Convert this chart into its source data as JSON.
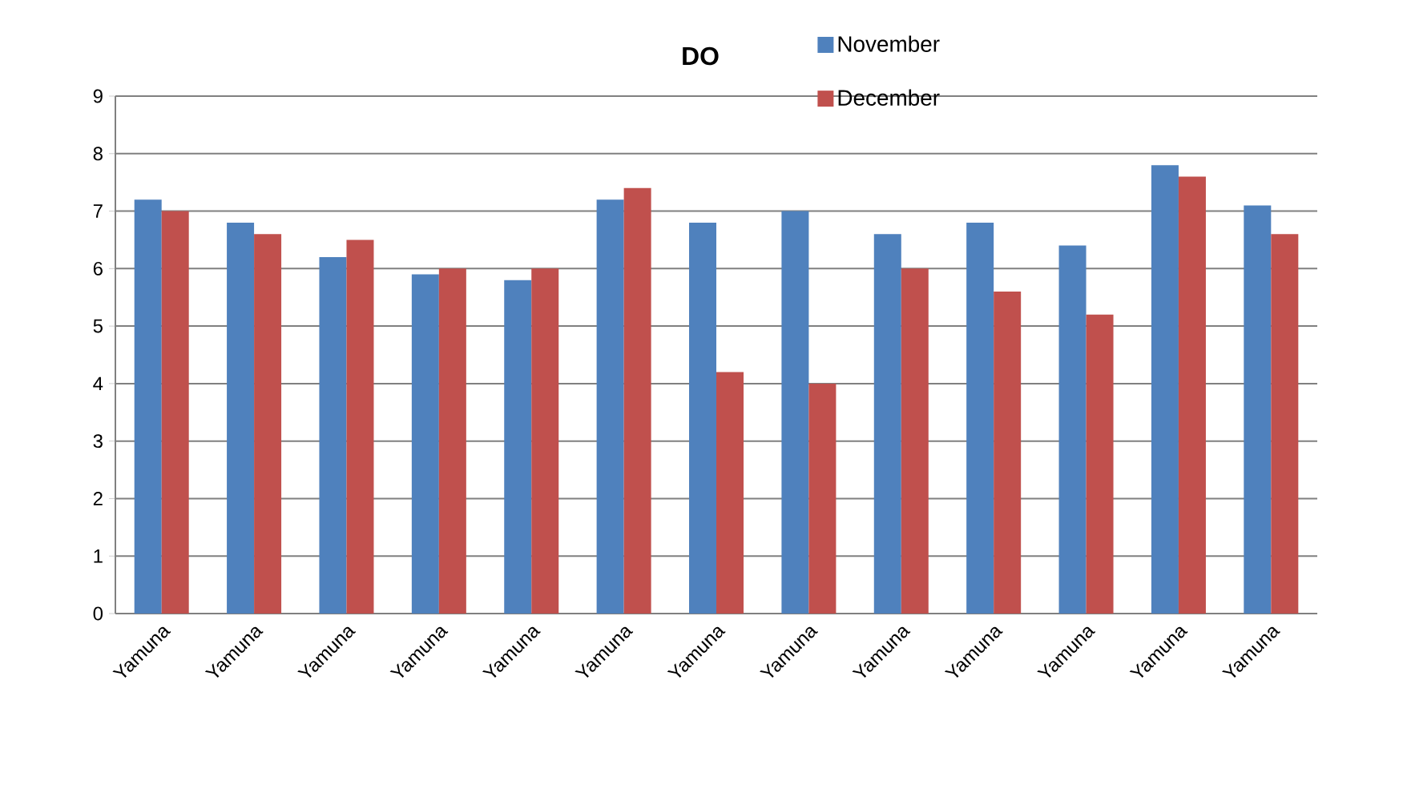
{
  "chart_data": {
    "type": "bar",
    "title": "DO",
    "categories": [
      "Yamuna",
      "Yamuna",
      "Yamuna",
      "Yamuna",
      "Yamuna",
      "Yamuna",
      "Yamuna",
      "Yamuna",
      "Yamuna",
      "Yamuna",
      "Yamuna",
      "Yamuna",
      "Yamuna"
    ],
    "series": [
      {
        "name": "November",
        "color": "#4f81bd",
        "values": [
          7.2,
          6.8,
          6.2,
          5.9,
          5.8,
          7.2,
          6.8,
          7.0,
          6.6,
          6.8,
          6.4,
          7.8,
          7.1
        ]
      },
      {
        "name": "December",
        "color": "#c0504d",
        "values": [
          7.0,
          6.6,
          6.5,
          6.0,
          6.0,
          7.4,
          4.2,
          4.0,
          6.0,
          5.6,
          5.2,
          7.6,
          6.6
        ]
      }
    ],
    "ylim": [
      0,
      9
    ],
    "yticks": [
      0,
      1,
      2,
      3,
      4,
      5,
      6,
      7,
      8,
      9
    ],
    "grid": "y",
    "legend": "top right"
  }
}
